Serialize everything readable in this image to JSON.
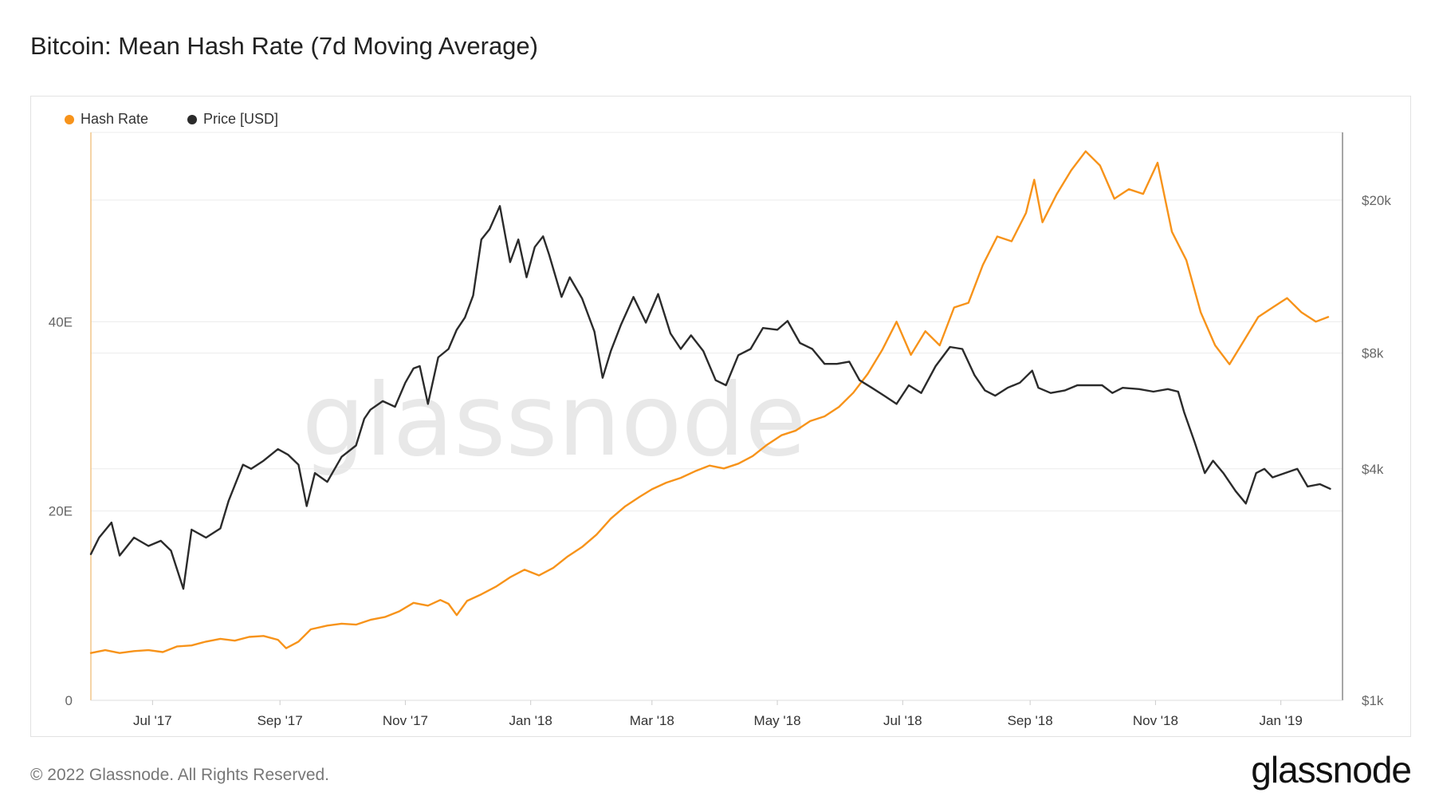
{
  "title": "Bitcoin: Mean Hash Rate (7d Moving Average)",
  "footer": {
    "copyright": "© 2022 Glassnode. All Rights Reserved.",
    "logo": "glassnode"
  },
  "watermark": "glassnode",
  "colors": {
    "hash_rate": "#f7931a",
    "price": "#2b2b2b",
    "grid": "#ececec",
    "axis_text": "#666666"
  },
  "chart_data": {
    "type": "line",
    "title": "Bitcoin: Mean Hash Rate (7d Moving Average)",
    "x_range": [
      "2017-06-01",
      "2019-01-31"
    ],
    "x_ticks": [
      {
        "date": "2017-07-01",
        "label": "Jul '17"
      },
      {
        "date": "2017-09-01",
        "label": "Sep '17"
      },
      {
        "date": "2017-11-01",
        "label": "Nov '17"
      },
      {
        "date": "2018-01-01",
        "label": "Jan '18"
      },
      {
        "date": "2018-03-01",
        "label": "Mar '18"
      },
      {
        "date": "2018-05-01",
        "label": "May '18"
      },
      {
        "date": "2018-07-01",
        "label": "Jul '18"
      },
      {
        "date": "2018-09-01",
        "label": "Sep '18"
      },
      {
        "date": "2018-11-01",
        "label": "Nov '18"
      },
      {
        "date": "2019-01-01",
        "label": "Jan '19"
      }
    ],
    "y_left": {
      "scale": "linear",
      "range": [
        0,
        60
      ],
      "ticks": [
        {
          "value": 0,
          "label": "0"
        },
        {
          "value": 20,
          "label": "20E"
        },
        {
          "value": 40,
          "label": "40E"
        }
      ]
    },
    "y_right": {
      "scale": "log",
      "range": [
        1000,
        30000
      ],
      "ticks": [
        {
          "value": 1000,
          "label": "$1k"
        },
        {
          "value": 4000,
          "label": "$4k"
        },
        {
          "value": 8000,
          "label": "$8k"
        },
        {
          "value": 20000,
          "label": "$20k"
        }
      ]
    },
    "grid": true,
    "legend_position": "top-left",
    "series": [
      {
        "name": "Hash Rate",
        "axis": "left",
        "color": "#f7931a",
        "points": [
          [
            "2017-06-01",
            5.0
          ],
          [
            "2017-06-08",
            5.3
          ],
          [
            "2017-06-15",
            5.0
          ],
          [
            "2017-06-22",
            5.2
          ],
          [
            "2017-06-29",
            5.3
          ],
          [
            "2017-07-06",
            5.1
          ],
          [
            "2017-07-13",
            5.7
          ],
          [
            "2017-07-20",
            5.8
          ],
          [
            "2017-07-27",
            6.2
          ],
          [
            "2017-08-03",
            6.5
          ],
          [
            "2017-08-10",
            6.3
          ],
          [
            "2017-08-17",
            6.7
          ],
          [
            "2017-08-24",
            6.8
          ],
          [
            "2017-08-31",
            6.4
          ],
          [
            "2017-09-04",
            5.5
          ],
          [
            "2017-09-10",
            6.2
          ],
          [
            "2017-09-16",
            7.5
          ],
          [
            "2017-09-24",
            7.9
          ],
          [
            "2017-10-01",
            8.1
          ],
          [
            "2017-10-08",
            8.0
          ],
          [
            "2017-10-15",
            8.5
          ],
          [
            "2017-10-22",
            8.8
          ],
          [
            "2017-10-29",
            9.4
          ],
          [
            "2017-11-05",
            10.3
          ],
          [
            "2017-11-12",
            10.0
          ],
          [
            "2017-11-18",
            10.6
          ],
          [
            "2017-11-22",
            10.2
          ],
          [
            "2017-11-26",
            9.0
          ],
          [
            "2017-12-01",
            10.5
          ],
          [
            "2017-12-08",
            11.2
          ],
          [
            "2017-12-15",
            12.0
          ],
          [
            "2017-12-22",
            13.0
          ],
          [
            "2017-12-29",
            13.8
          ],
          [
            "2018-01-05",
            13.2
          ],
          [
            "2018-01-12",
            14.0
          ],
          [
            "2018-01-19",
            15.2
          ],
          [
            "2018-01-26",
            16.2
          ],
          [
            "2018-02-02",
            17.5
          ],
          [
            "2018-02-09",
            19.2
          ],
          [
            "2018-02-16",
            20.5
          ],
          [
            "2018-02-23",
            21.5
          ],
          [
            "2018-03-01",
            22.3
          ],
          [
            "2018-03-08",
            23.0
          ],
          [
            "2018-03-15",
            23.5
          ],
          [
            "2018-03-22",
            24.2
          ],
          [
            "2018-03-29",
            24.8
          ],
          [
            "2018-04-05",
            24.5
          ],
          [
            "2018-04-12",
            25.0
          ],
          [
            "2018-04-19",
            25.8
          ],
          [
            "2018-04-26",
            27.0
          ],
          [
            "2018-05-03",
            28.0
          ],
          [
            "2018-05-10",
            28.5
          ],
          [
            "2018-05-17",
            29.5
          ],
          [
            "2018-05-24",
            30.0
          ],
          [
            "2018-05-31",
            31.0
          ],
          [
            "2018-06-07",
            32.5
          ],
          [
            "2018-06-14",
            34.5
          ],
          [
            "2018-06-21",
            37.0
          ],
          [
            "2018-06-28",
            40.0
          ],
          [
            "2018-07-05",
            36.5
          ],
          [
            "2018-07-12",
            39.0
          ],
          [
            "2018-07-19",
            37.5
          ],
          [
            "2018-07-26",
            41.5
          ],
          [
            "2018-08-02",
            42.0
          ],
          [
            "2018-08-09",
            46.0
          ],
          [
            "2018-08-16",
            49.0
          ],
          [
            "2018-08-23",
            48.5
          ],
          [
            "2018-08-30",
            51.5
          ],
          [
            "2018-09-03",
            55.0
          ],
          [
            "2018-09-07",
            50.5
          ],
          [
            "2018-09-14",
            53.5
          ],
          [
            "2018-09-21",
            56.0
          ],
          [
            "2018-09-28",
            58.0
          ],
          [
            "2018-10-05",
            56.5
          ],
          [
            "2018-10-12",
            53.0
          ],
          [
            "2018-10-19",
            54.0
          ],
          [
            "2018-10-26",
            53.5
          ],
          [
            "2018-11-02",
            56.8
          ],
          [
            "2018-11-09",
            49.5
          ],
          [
            "2018-11-16",
            46.5
          ],
          [
            "2018-11-23",
            41.0
          ],
          [
            "2018-11-30",
            37.5
          ],
          [
            "2018-12-07",
            35.5
          ],
          [
            "2018-12-14",
            38.0
          ],
          [
            "2018-12-21",
            40.5
          ],
          [
            "2018-12-28",
            41.5
          ],
          [
            "2019-01-04",
            42.5
          ],
          [
            "2019-01-11",
            41.0
          ],
          [
            "2019-01-18",
            40.0
          ],
          [
            "2019-01-24",
            40.5
          ]
        ]
      },
      {
        "name": "Price [USD]",
        "axis": "right",
        "color": "#2b2b2b",
        "points": [
          [
            "2017-06-01",
            2400
          ],
          [
            "2017-06-05",
            2650
          ],
          [
            "2017-06-11",
            2900
          ],
          [
            "2017-06-15",
            2380
          ],
          [
            "2017-06-22",
            2650
          ],
          [
            "2017-06-29",
            2520
          ],
          [
            "2017-07-05",
            2600
          ],
          [
            "2017-07-10",
            2450
          ],
          [
            "2017-07-16",
            1950
          ],
          [
            "2017-07-20",
            2780
          ],
          [
            "2017-07-27",
            2650
          ],
          [
            "2017-08-03",
            2800
          ],
          [
            "2017-08-07",
            3300
          ],
          [
            "2017-08-14",
            4100
          ],
          [
            "2017-08-18",
            4000
          ],
          [
            "2017-08-24",
            4200
          ],
          [
            "2017-08-31",
            4500
          ],
          [
            "2017-09-05",
            4350
          ],
          [
            "2017-09-10",
            4100
          ],
          [
            "2017-09-14",
            3200
          ],
          [
            "2017-09-18",
            3900
          ],
          [
            "2017-09-24",
            3700
          ],
          [
            "2017-10-01",
            4300
          ],
          [
            "2017-10-08",
            4600
          ],
          [
            "2017-10-12",
            5400
          ],
          [
            "2017-10-15",
            5700
          ],
          [
            "2017-10-21",
            6000
          ],
          [
            "2017-10-27",
            5800
          ],
          [
            "2017-11-01",
            6700
          ],
          [
            "2017-11-05",
            7300
          ],
          [
            "2017-11-08",
            7400
          ],
          [
            "2017-11-12",
            5900
          ],
          [
            "2017-11-17",
            7800
          ],
          [
            "2017-11-22",
            8200
          ],
          [
            "2017-11-26",
            9200
          ],
          [
            "2017-11-30",
            9900
          ],
          [
            "2017-12-04",
            11300
          ],
          [
            "2017-12-08",
            15800
          ],
          [
            "2017-12-12",
            16800
          ],
          [
            "2017-12-17",
            19300
          ],
          [
            "2017-12-22",
            13800
          ],
          [
            "2017-12-26",
            15800
          ],
          [
            "2017-12-30",
            12600
          ],
          [
            "2018-01-03",
            15100
          ],
          [
            "2018-01-07",
            16100
          ],
          [
            "2018-01-10",
            14400
          ],
          [
            "2018-01-16",
            11200
          ],
          [
            "2018-01-20",
            12600
          ],
          [
            "2018-01-26",
            11100
          ],
          [
            "2018-02-01",
            9100
          ],
          [
            "2018-02-05",
            6900
          ],
          [
            "2018-02-09",
            8100
          ],
          [
            "2018-02-14",
            9500
          ],
          [
            "2018-02-20",
            11200
          ],
          [
            "2018-02-26",
            9600
          ],
          [
            "2018-03-04",
            11400
          ],
          [
            "2018-03-10",
            9000
          ],
          [
            "2018-03-15",
            8200
          ],
          [
            "2018-03-20",
            8900
          ],
          [
            "2018-03-26",
            8100
          ],
          [
            "2018-04-01",
            6800
          ],
          [
            "2018-04-06",
            6600
          ],
          [
            "2018-04-12",
            7900
          ],
          [
            "2018-04-18",
            8200
          ],
          [
            "2018-04-24",
            9300
          ],
          [
            "2018-05-01",
            9200
          ],
          [
            "2018-05-06",
            9700
          ],
          [
            "2018-05-12",
            8500
          ],
          [
            "2018-05-18",
            8200
          ],
          [
            "2018-05-24",
            7500
          ],
          [
            "2018-05-30",
            7500
          ],
          [
            "2018-06-05",
            7600
          ],
          [
            "2018-06-10",
            6800
          ],
          [
            "2018-06-16",
            6500
          ],
          [
            "2018-06-22",
            6200
          ],
          [
            "2018-06-28",
            5900
          ],
          [
            "2018-07-04",
            6600
          ],
          [
            "2018-07-10",
            6300
          ],
          [
            "2018-07-17",
            7400
          ],
          [
            "2018-07-24",
            8300
          ],
          [
            "2018-07-30",
            8200
          ],
          [
            "2018-08-05",
            7000
          ],
          [
            "2018-08-10",
            6400
          ],
          [
            "2018-08-15",
            6200
          ],
          [
            "2018-08-21",
            6500
          ],
          [
            "2018-08-27",
            6700
          ],
          [
            "2018-09-02",
            7200
          ],
          [
            "2018-09-05",
            6500
          ],
          [
            "2018-09-11",
            6300
          ],
          [
            "2018-09-18",
            6400
          ],
          [
            "2018-09-24",
            6600
          ],
          [
            "2018-10-01",
            6600
          ],
          [
            "2018-10-06",
            6600
          ],
          [
            "2018-10-11",
            6300
          ],
          [
            "2018-10-16",
            6500
          ],
          [
            "2018-10-24",
            6450
          ],
          [
            "2018-10-31",
            6350
          ],
          [
            "2018-11-07",
            6450
          ],
          [
            "2018-11-12",
            6350
          ],
          [
            "2018-11-15",
            5600
          ],
          [
            "2018-11-20",
            4700
          ],
          [
            "2018-11-25",
            3900
          ],
          [
            "2018-11-29",
            4200
          ],
          [
            "2018-12-04",
            3900
          ],
          [
            "2018-12-10",
            3500
          ],
          [
            "2018-12-15",
            3250
          ],
          [
            "2018-12-20",
            3900
          ],
          [
            "2018-12-24",
            4000
          ],
          [
            "2018-12-28",
            3800
          ],
          [
            "2019-01-03",
            3900
          ],
          [
            "2019-01-09",
            4000
          ],
          [
            "2019-01-14",
            3600
          ],
          [
            "2019-01-20",
            3650
          ],
          [
            "2019-01-25",
            3550
          ]
        ]
      }
    ]
  }
}
